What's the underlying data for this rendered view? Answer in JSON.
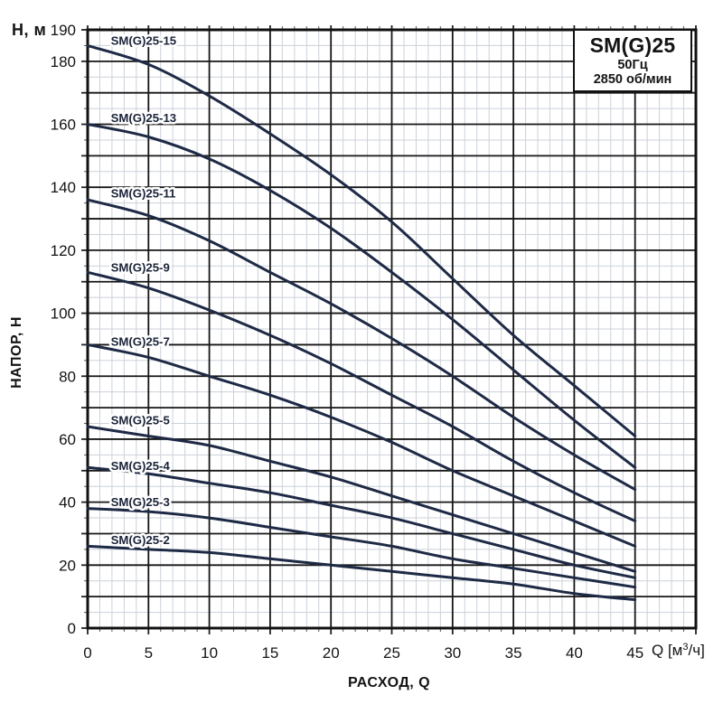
{
  "title_box": {
    "model": "SM(G)25",
    "frequency": "50Гц",
    "speed": "2850 об/мин"
  },
  "labels": {
    "y_corner": "Н, м",
    "y_axis": "НАПОР, Н",
    "x_axis": "РАСХОД, Q",
    "x_unit_pre": "Q [м",
    "x_unit_sup": "3",
    "x_unit_post": "/ч]"
  },
  "chart_data": {
    "type": "line",
    "title": "SM(G)25 50Гц 2850 об/мин",
    "xlabel": "РАСХОД, Q [м3/ч]",
    "ylabel": "НАПОР, Н [м]",
    "xlim": [
      0,
      50
    ],
    "ylim": [
      0,
      190
    ],
    "x_ticks": [
      0,
      5,
      10,
      15,
      20,
      25,
      30,
      35,
      40,
      45
    ],
    "y_ticks": [
      0,
      20,
      40,
      60,
      80,
      100,
      120,
      140,
      160,
      180,
      190
    ],
    "grid": {
      "x_major": 5,
      "x_minor": 1,
      "y_major": 10,
      "y_minor": 5,
      "visible": true
    },
    "legend_position": "labels-on-curves",
    "x": [
      0,
      5,
      10,
      15,
      20,
      25,
      30,
      35,
      40,
      45
    ],
    "series": [
      {
        "name": "SM(G)25-15",
        "values": [
          185,
          179,
          169,
          157,
          144,
          129,
          111,
          93,
          77,
          61
        ],
        "label_h": 186.5
      },
      {
        "name": "SM(G)25-13",
        "values": [
          160,
          156,
          149,
          139,
          127,
          113,
          98,
          82,
          66,
          51
        ],
        "label_h": 162
      },
      {
        "name": "SM(G)25-11",
        "values": [
          136,
          131,
          123,
          113,
          103,
          92,
          80,
          67,
          55,
          44
        ],
        "label_h": 138
      },
      {
        "name": "SM(G)25-9",
        "values": [
          113,
          108,
          101,
          93,
          84,
          74,
          64,
          53,
          43,
          34
        ],
        "label_h": 114.5
      },
      {
        "name": "SM(G)25-7",
        "values": [
          90,
          86,
          80,
          74,
          67,
          59,
          50,
          42,
          34,
          26
        ],
        "label_h": 91
      },
      {
        "name": "SM(G)25-5",
        "values": [
          64,
          61,
          58,
          53,
          48,
          42,
          36,
          30,
          24,
          18
        ],
        "label_h": 66
      },
      {
        "name": "SM(G)25-4",
        "values": [
          51,
          49,
          46,
          43,
          39,
          35,
          30,
          25,
          20,
          16
        ],
        "label_h": 51.5
      },
      {
        "name": "SM(G)25-3",
        "values": [
          38,
          37,
          35,
          32,
          29,
          26,
          22,
          19,
          16,
          13
        ],
        "label_h": 40
      },
      {
        "name": "SM(G)25-2",
        "values": [
          26,
          25,
          24,
          22,
          20,
          18,
          16,
          14,
          11,
          9
        ],
        "label_h": 28
      }
    ],
    "colors": {
      "curve": "#1e2a45",
      "grid_major": "#161616",
      "grid_minor": "#ccd1d9",
      "border": "#111111",
      "text": "#141414",
      "tick": "#555555"
    }
  }
}
